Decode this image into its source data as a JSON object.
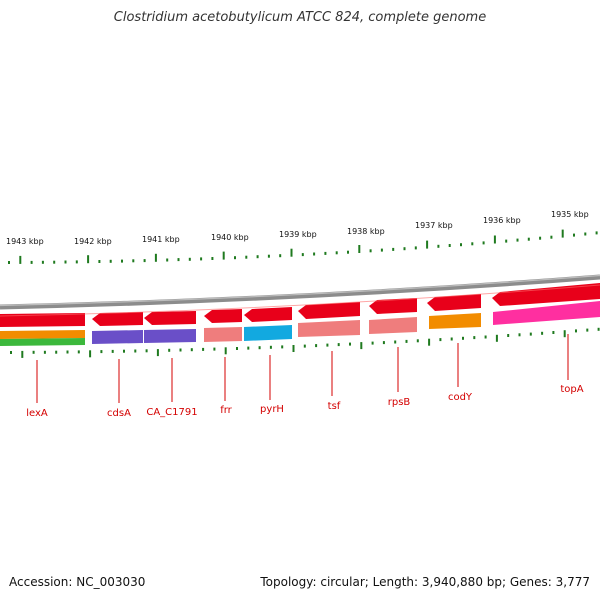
{
  "title": "Clostridium acetobutylicum ATCC 824, complete genome",
  "accession": "Accession: NC_003030",
  "summary": "Topology: circular; Length: 3,940,880 bp; Genes: 3,777",
  "colors": {
    "backbone": "#7a7a7a",
    "cds": "#e8001a",
    "tick": "#1f7a1f",
    "label": "#d40000"
  },
  "scale_labels": [
    "1943 kbp",
    "1942 kbp",
    "1941 kbp",
    "1940 kbp",
    "1939 kbp",
    "1938 kbp",
    "1937 kbp",
    "1936 kbp",
    "1935 kbp"
  ],
  "gene_labels": [
    "lexA",
    "cdsA",
    "CA_C1791",
    "frr",
    "pyrH",
    "tsf",
    "rpsB",
    "codY",
    "topA"
  ]
}
